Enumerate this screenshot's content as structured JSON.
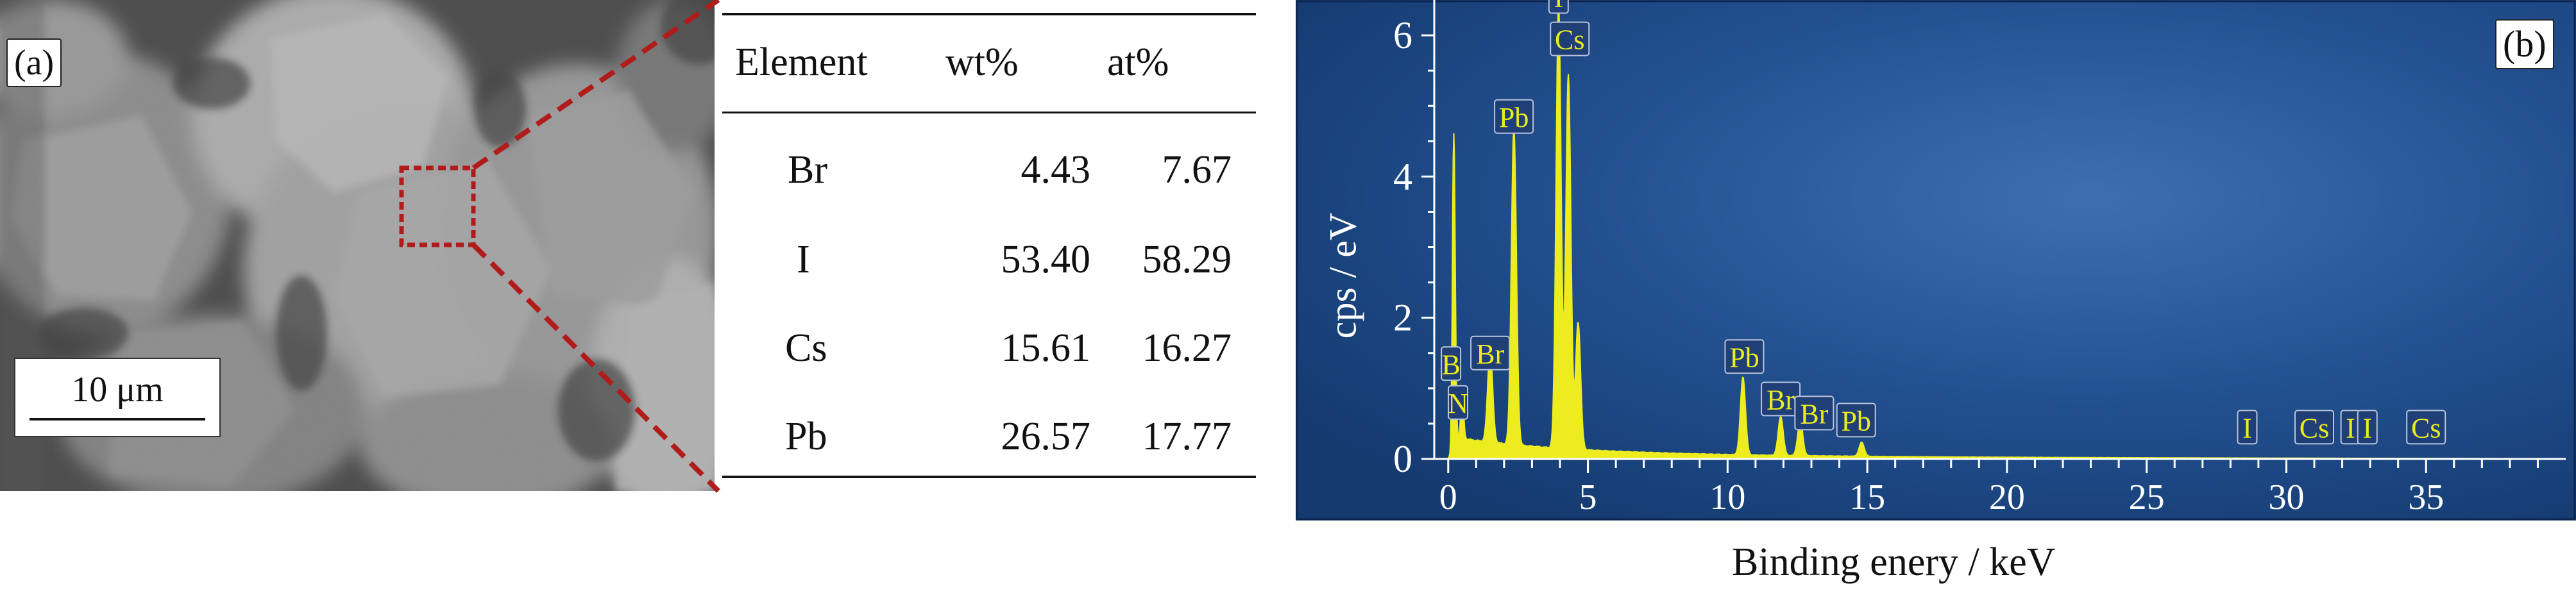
{
  "panel_a": {
    "label": "(a)",
    "scale_bar": "10 μm"
  },
  "table": {
    "headers": [
      "Element",
      "wt%",
      "at%"
    ],
    "rows": [
      [
        "Br",
        "4.43",
        "7.67"
      ],
      [
        "I",
        "53.40",
        "58.29"
      ],
      [
        "Cs",
        "15.61",
        "16.27"
      ],
      [
        "Pb",
        "26.57",
        "17.77"
      ]
    ]
  },
  "panel_b": {
    "label": "(b)"
  },
  "colors": {
    "zoom_lines": "#b01c1c",
    "spectrum_bg": "#1b4a88",
    "spectrum_fill": "#ecec1e",
    "peak_label_bg": "#1f3f76"
  },
  "chart_data": {
    "type": "area",
    "xlabel": "Binding enery / keV",
    "ylabel": "cps / eV",
    "xlim": [
      -0.5,
      40
    ],
    "ylim": [
      0,
      6.5
    ],
    "x_ticks": [
      0,
      5,
      10,
      15,
      20,
      25,
      30,
      35
    ],
    "y_ticks": [
      0,
      2,
      4,
      6
    ],
    "grid": false,
    "peaks": [
      {
        "x": 0.2,
        "y": 4.3
      },
      {
        "x": 0.5,
        "y": 0.7
      },
      {
        "x": 1.5,
        "y": 1.3
      },
      {
        "x": 2.35,
        "y": 4.5
      },
      {
        "x": 3.95,
        "y": 6.3
      },
      {
        "x": 4.3,
        "y": 5.3
      },
      {
        "x": 4.65,
        "y": 1.8
      },
      {
        "x": 10.55,
        "y": 1.1
      },
      {
        "x": 11.9,
        "y": 0.55
      },
      {
        "x": 12.6,
        "y": 0.5
      },
      {
        "x": 14.8,
        "y": 0.2
      }
    ],
    "peak_labels": [
      {
        "text": "B",
        "x": 0.1,
        "y": 1.35
      },
      {
        "text": "N",
        "x": 0.35,
        "y": 0.8
      },
      {
        "text": "Br",
        "x": 1.5,
        "y": 1.5
      },
      {
        "text": "Pb",
        "x": 2.35,
        "y": 4.85
      },
      {
        "text": "I",
        "x": 3.95,
        "y": 6.55
      },
      {
        "text": "Cs",
        "x": 4.35,
        "y": 5.95
      },
      {
        "text": "Pb",
        "x": 10.6,
        "y": 1.45
      },
      {
        "text": "Br",
        "x": 11.9,
        "y": 0.85
      },
      {
        "text": "Br",
        "x": 13.1,
        "y": 0.65
      },
      {
        "text": "Pb",
        "x": 14.6,
        "y": 0.55
      },
      {
        "text": "I",
        "x": 28.6,
        "y": 0.45
      },
      {
        "text": "Cs",
        "x": 31.0,
        "y": 0.45
      },
      {
        "text": "I",
        "x": 32.3,
        "y": 0.45
      },
      {
        "text": "I",
        "x": 32.9,
        "y": 0.45
      },
      {
        "text": "Cs",
        "x": 35.0,
        "y": 0.45
      }
    ]
  }
}
